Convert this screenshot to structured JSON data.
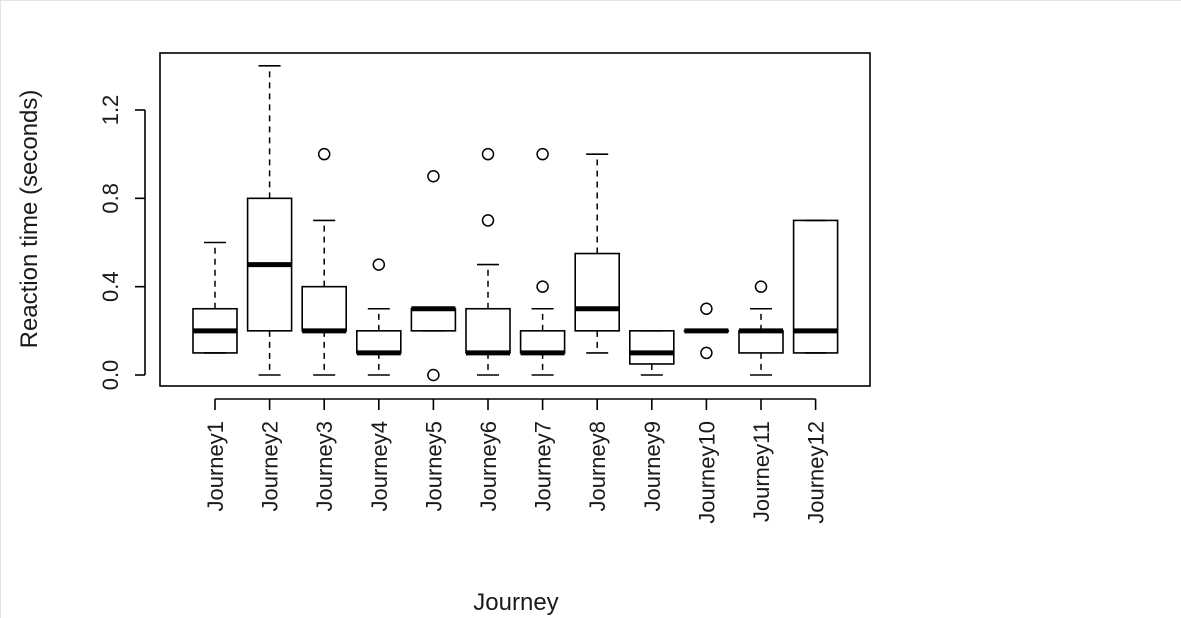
{
  "chart_data": {
    "type": "boxplot",
    "xlabel": "Journey",
    "ylabel": "Reaction time (seconds)",
    "ylim": [
      -0.08,
      1.42
    ],
    "yticks": [
      "0.0",
      "0.4",
      "0.8",
      "1.2"
    ],
    "ytick_values": [
      0.0,
      0.4,
      0.8,
      1.2
    ],
    "categories": [
      "Journey1",
      "Journey2",
      "Journey3",
      "Journey4",
      "Journey5",
      "Journey6",
      "Journey7",
      "Journey8",
      "Journey9",
      "Journey10",
      "Journey11",
      "Journey12"
    ],
    "boxes": [
      {
        "whisker_low": 0.1,
        "q1": 0.1,
        "median": 0.2,
        "q3": 0.3,
        "whisker_high": 0.6,
        "outliers": []
      },
      {
        "whisker_low": 0.0,
        "q1": 0.2,
        "median": 0.5,
        "q3": 0.8,
        "whisker_high": 1.4,
        "outliers": []
      },
      {
        "whisker_low": 0.0,
        "q1": 0.2,
        "median": 0.2,
        "q3": 0.4,
        "whisker_high": 0.7,
        "outliers": [
          1.0
        ]
      },
      {
        "whisker_low": 0.0,
        "q1": 0.1,
        "median": 0.1,
        "q3": 0.2,
        "whisker_high": 0.3,
        "outliers": [
          0.5
        ]
      },
      {
        "whisker_low": 0.2,
        "q1": 0.2,
        "median": 0.3,
        "q3": 0.3,
        "whisker_high": 0.3,
        "outliers": [
          0.0,
          0.9
        ]
      },
      {
        "whisker_low": 0.0,
        "q1": 0.1,
        "median": 0.1,
        "q3": 0.3,
        "whisker_high": 0.5,
        "outliers": [
          0.7,
          1.0
        ]
      },
      {
        "whisker_low": 0.0,
        "q1": 0.1,
        "median": 0.1,
        "q3": 0.2,
        "whisker_high": 0.3,
        "outliers": [
          0.4,
          1.0
        ]
      },
      {
        "whisker_low": 0.1,
        "q1": 0.2,
        "median": 0.3,
        "q3": 0.55,
        "whisker_high": 1.0,
        "outliers": []
      },
      {
        "whisker_low": 0.0,
        "q1": 0.05,
        "median": 0.1,
        "q3": 0.2,
        "whisker_high": 0.2,
        "outliers": []
      },
      {
        "whisker_low": 0.2,
        "q1": 0.2,
        "median": 0.2,
        "q3": 0.2,
        "whisker_high": 0.2,
        "outliers": [
          0.1,
          0.3
        ]
      },
      {
        "whisker_low": 0.0,
        "q1": 0.1,
        "median": 0.2,
        "q3": 0.2,
        "whisker_high": 0.3,
        "outliers": [
          0.4
        ]
      },
      {
        "whisker_low": 0.1,
        "q1": 0.1,
        "median": 0.2,
        "q3": 0.7,
        "whisker_high": 0.7,
        "outliers": []
      }
    ]
  }
}
